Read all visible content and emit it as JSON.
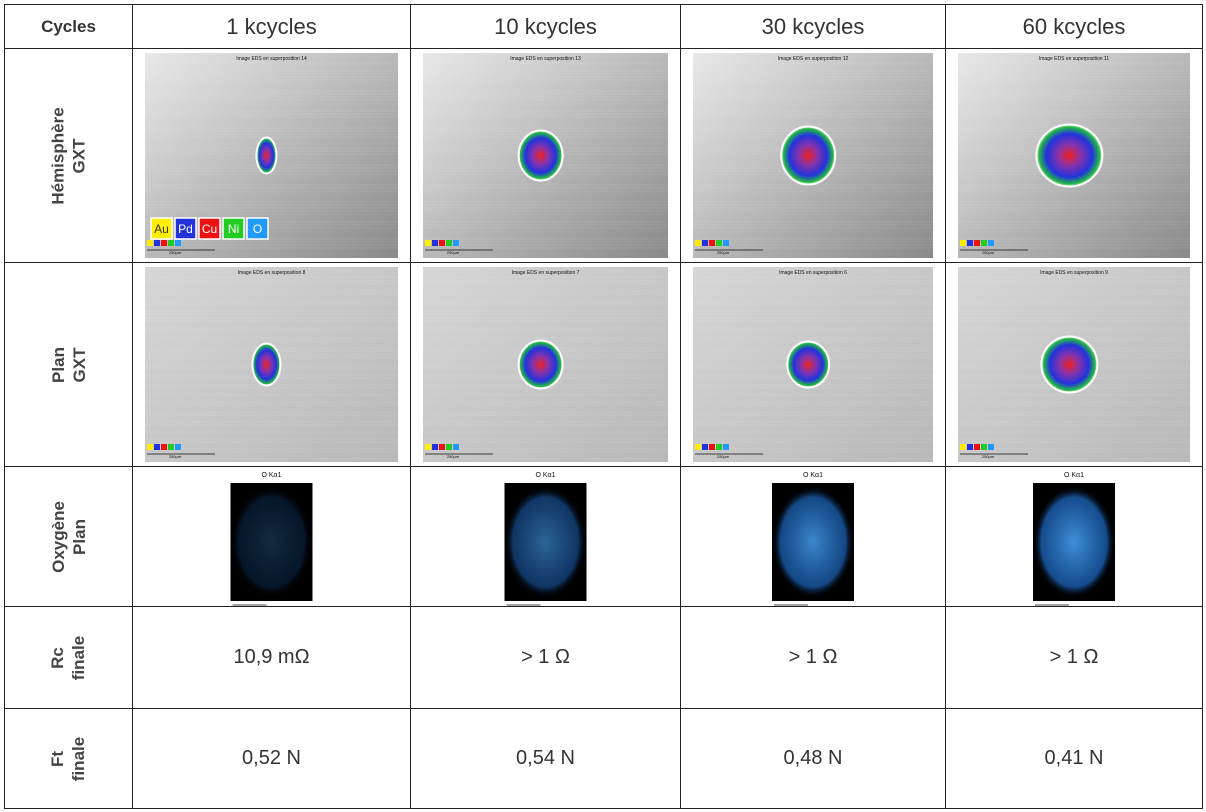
{
  "header": [
    "Cycles",
    "1 kcycles",
    "10 kcycles",
    "30 kcycles",
    "60 kcycles"
  ],
  "legend": [
    "Au",
    "Pd",
    "Cu",
    "Ni",
    "O"
  ],
  "rows": [
    {
      "label": [
        "Hémisphère",
        "GXT"
      ],
      "cells": [
        {
          "caption": "Image EDS en superposition 14",
          "scale": "250µm"
        },
        {
          "caption": "Image EDS en superposition 13",
          "scale": "250µm"
        },
        {
          "caption": "Image EDS en superposition 12",
          "scale": "250µm"
        },
        {
          "caption": "Image EDS en superposition 11",
          "scale": "250µm"
        }
      ]
    },
    {
      "label": [
        "Plan",
        "GXT"
      ],
      "cells": [
        {
          "caption": "Image EDS en superposition 8",
          "scale": "250µm"
        },
        {
          "caption": "Image EDS en superposition 7",
          "scale": "250µm"
        },
        {
          "caption": "Image EDS en superposition 6",
          "scale": "250µm"
        },
        {
          "caption": "Image EDS en superposition 9",
          "scale": "250µm"
        }
      ]
    },
    {
      "label": [
        "Oxygène",
        "Plan"
      ],
      "cells": [
        {
          "caption": "O Kα1",
          "scale": "50µm"
        },
        {
          "caption": "O Kα1",
          "scale": "50µm"
        },
        {
          "caption": "O Kα1",
          "scale": "100µm"
        },
        {
          "caption": "O Kα1",
          "scale": "100µm"
        }
      ]
    },
    {
      "label": [
        "Rc",
        "finale"
      ],
      "cells": [
        "10,9 mΩ",
        "> 1 Ω",
        "> 1 Ω",
        "> 1 Ω"
      ]
    },
    {
      "label": [
        "Ft",
        "finale"
      ],
      "cells": [
        "0,52 N",
        "0,54 N",
        "0,48 N",
        "0,41 N"
      ]
    }
  ]
}
